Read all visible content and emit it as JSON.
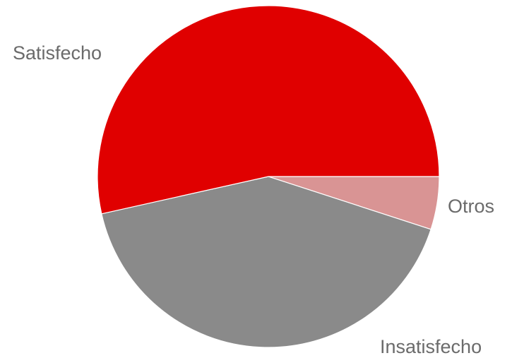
{
  "chart_data": {
    "type": "pie",
    "title": "",
    "categories": [
      "Satisfecho",
      "Insatisfecho",
      "Otros"
    ],
    "values": [
      53.5,
      41.5,
      5.0
    ],
    "unit": "%",
    "start_angle_deg": 0,
    "direction": "counterclockwise",
    "labels_shown": [
      "Satisfecho",
      "Insatisfecho",
      "Otros"
    ],
    "colors": [
      "#e00000",
      "#8a8a8a",
      "#d99494"
    ],
    "legend": "none",
    "data_labels": "category names outside slices"
  }
}
